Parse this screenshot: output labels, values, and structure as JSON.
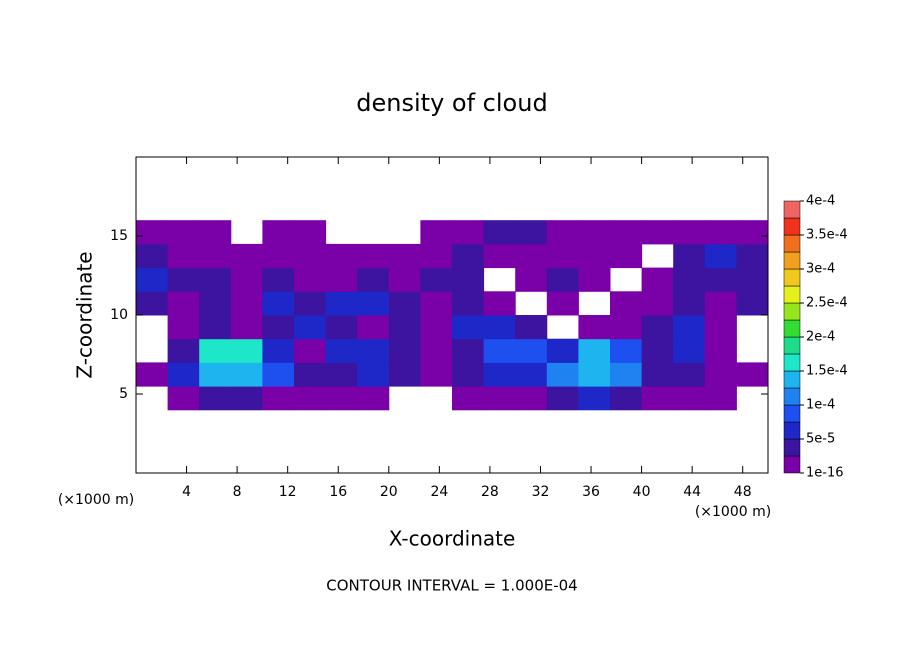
{
  "chart_data": {
    "type": "contour",
    "title": "density of cloud",
    "x_label": "X-coordinate",
    "y_label": "Z-coordinate",
    "x_unit": "(×1000 m)",
    "y_unit": "(×1000 m)",
    "footer": "CONTOUR INTERVAL = 1.000E-04",
    "xlim": [
      0,
      50
    ],
    "ylim": [
      0,
      20
    ],
    "xticks": [
      4,
      8,
      12,
      16,
      20,
      24,
      28,
      32,
      36,
      40,
      44,
      48
    ],
    "yticks": [
      5,
      10,
      15
    ],
    "x": [
      1.25,
      3.75,
      6.25,
      8.75,
      11.25,
      13.75,
      16.25,
      18.75,
      21.25,
      23.75,
      26.25,
      28.75,
      31.25,
      33.75,
      36.25,
      38.75,
      41.25,
      43.75,
      46.25,
      48.75
    ],
    "y": [
      4.75,
      6.25,
      7.75,
      9.25,
      10.75,
      12.25,
      13.75,
      15.25
    ],
    "z": [
      [
        null,
        1e-05,
        3.5e-05,
        3.5e-05,
        1e-05,
        1e-05,
        1e-05,
        1e-05,
        null,
        null,
        1e-05,
        1e-05,
        1e-05,
        3.5e-05,
        6e-05,
        3.5e-05,
        1e-05,
        1e-05,
        1e-05,
        null
      ],
      [
        1e-05,
        6e-05,
        0.000135,
        0.000135,
        8.5e-05,
        3.5e-05,
        3.5e-05,
        6e-05,
        3.5e-05,
        1e-05,
        3.5e-05,
        6e-05,
        6e-05,
        0.00011,
        0.000135,
        0.00011,
        3.5e-05,
        3.5e-05,
        1e-05,
        1e-05
      ],
      [
        null,
        3.5e-05,
        0.00016,
        0.00016,
        6e-05,
        1e-05,
        6e-05,
        6e-05,
        3.5e-05,
        1e-05,
        3.5e-05,
        8.5e-05,
        8.5e-05,
        6e-05,
        0.000135,
        8.5e-05,
        3.5e-05,
        6e-05,
        1e-05,
        null
      ],
      [
        null,
        1e-05,
        3.5e-05,
        1e-05,
        3.5e-05,
        6e-05,
        3.5e-05,
        1e-05,
        3.5e-05,
        1e-05,
        6e-05,
        6e-05,
        3.5e-05,
        null,
        1e-05,
        1e-05,
        3.5e-05,
        6e-05,
        1e-05,
        null
      ],
      [
        3.5e-05,
        1e-05,
        3.5e-05,
        1e-05,
        6e-05,
        3.5e-05,
        6e-05,
        6e-05,
        3.5e-05,
        1e-05,
        3.5e-05,
        1e-05,
        null,
        1e-05,
        null,
        1e-05,
        1e-05,
        3.5e-05,
        1e-05,
        3.5e-05
      ],
      [
        6e-05,
        3.5e-05,
        3.5e-05,
        1e-05,
        3.5e-05,
        1e-05,
        1e-05,
        3.5e-05,
        1e-05,
        3.5e-05,
        3.5e-05,
        null,
        1e-05,
        3.5e-05,
        1e-05,
        null,
        1e-05,
        3.5e-05,
        3.5e-05,
        3.5e-05
      ],
      [
        3.5e-05,
        1e-05,
        1e-05,
        1e-05,
        1e-05,
        1e-05,
        1e-05,
        1e-05,
        1e-05,
        1e-05,
        3.5e-05,
        1e-05,
        1e-05,
        1e-05,
        1e-05,
        1e-05,
        null,
        3.5e-05,
        6e-05,
        3.5e-05
      ],
      [
        1e-05,
        1e-05,
        1e-05,
        null,
        1e-05,
        1e-05,
        null,
        null,
        null,
        1e-05,
        1e-05,
        3.5e-05,
        3.5e-05,
        1e-05,
        1e-05,
        1e-05,
        1e-05,
        1e-05,
        1e-05,
        1e-05
      ]
    ],
    "colorbar": {
      "levels": [
        1e-16,
        2.5e-05,
        5e-05,
        7.5e-05,
        0.0001,
        0.000125,
        0.00015,
        0.000175,
        0.0002,
        0.000225,
        0.00025,
        0.000275,
        0.0003,
        0.000325,
        0.00035,
        0.000375,
        0.0004
      ],
      "colors": [
        "#7a00a8",
        "#3c14a0",
        "#1e28c8",
        "#1e50f0",
        "#1e82f0",
        "#1eb4f0",
        "#1ee6c8",
        "#1edc8c",
        "#32dc32",
        "#96e61e",
        "#e6f01e",
        "#f0c81e",
        "#f0a01e",
        "#f06e1e",
        "#f0321e",
        "#f06464",
        "#f09696"
      ],
      "ticks": [
        {
          "value": 1e-16,
          "label": "1e-16"
        },
        {
          "value": 5e-05,
          "label": "5e-5"
        },
        {
          "value": 0.0001,
          "label": "1e-4"
        },
        {
          "value": 0.00015,
          "label": "1.5e-4"
        },
        {
          "value": 0.0002,
          "label": "2e-4"
        },
        {
          "value": 0.00025,
          "label": "2.5e-4"
        },
        {
          "value": 0.0003,
          "label": "3e-4"
        },
        {
          "value": 0.00035,
          "label": "3.5e-4"
        },
        {
          "value": 0.0004,
          "label": "4e-4"
        }
      ]
    }
  }
}
